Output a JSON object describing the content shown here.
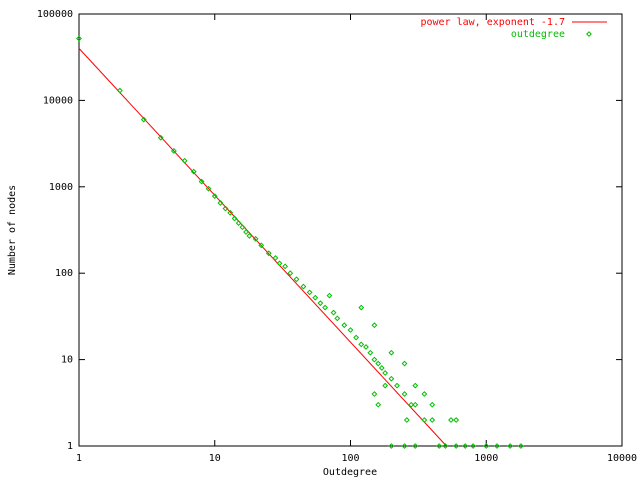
{
  "chart_data": {
    "type": "scatter",
    "x_label": "Outdegree",
    "y_label": "Number of nodes",
    "xscale": "log",
    "yscale": "log",
    "xlim": [
      1,
      10000
    ],
    "ylim": [
      1,
      100000
    ],
    "xticks": [
      1,
      10,
      100,
      1000,
      10000
    ],
    "yticks": [
      1,
      10,
      100,
      1000,
      10000,
      100000
    ],
    "grid": false,
    "legend": "top-right",
    "series": [
      {
        "name": "power law, exponent -1.7",
        "type": "line",
        "color": "#ff0000",
        "x": [
          1,
          509
        ],
        "values": [
          40000,
          1
        ]
      },
      {
        "name": "outdegree",
        "type": "scatter",
        "color": "#00c000",
        "x": [
          1,
          2,
          3,
          4,
          5,
          6,
          7,
          8,
          9,
          10,
          11,
          12,
          13,
          14,
          15,
          16,
          17,
          18,
          20,
          22,
          25,
          28,
          30,
          33,
          36,
          40,
          45,
          50,
          55,
          60,
          65,
          70,
          75,
          80,
          90,
          100,
          110,
          120,
          130,
          140,
          150,
          160,
          170,
          180,
          200,
          220,
          250,
          280,
          300,
          350,
          400,
          450,
          500,
          600,
          700,
          800,
          1000,
          1200,
          1500,
          1800,
          120,
          150,
          200,
          250,
          180,
          300,
          160,
          260,
          200,
          250,
          300,
          150,
          400,
          350,
          550,
          600
        ],
        "values": [
          52000,
          13000,
          6000,
          3700,
          2600,
          2000,
          1500,
          1150,
          950,
          780,
          650,
          560,
          500,
          430,
          380,
          340,
          300,
          270,
          250,
          210,
          170,
          150,
          130,
          120,
          100,
          85,
          70,
          60,
          52,
          45,
          40,
          55,
          35,
          30,
          25,
          22,
          18,
          15,
          14,
          12,
          10,
          9,
          8,
          7,
          6,
          5,
          4,
          3,
          3,
          2,
          2,
          1,
          1,
          1,
          1,
          1,
          1,
          1,
          1,
          1,
          40,
          25,
          12,
          9,
          5,
          5,
          3,
          2,
          1,
          1,
          1,
          4,
          3,
          4,
          2,
          2
        ]
      }
    ]
  }
}
